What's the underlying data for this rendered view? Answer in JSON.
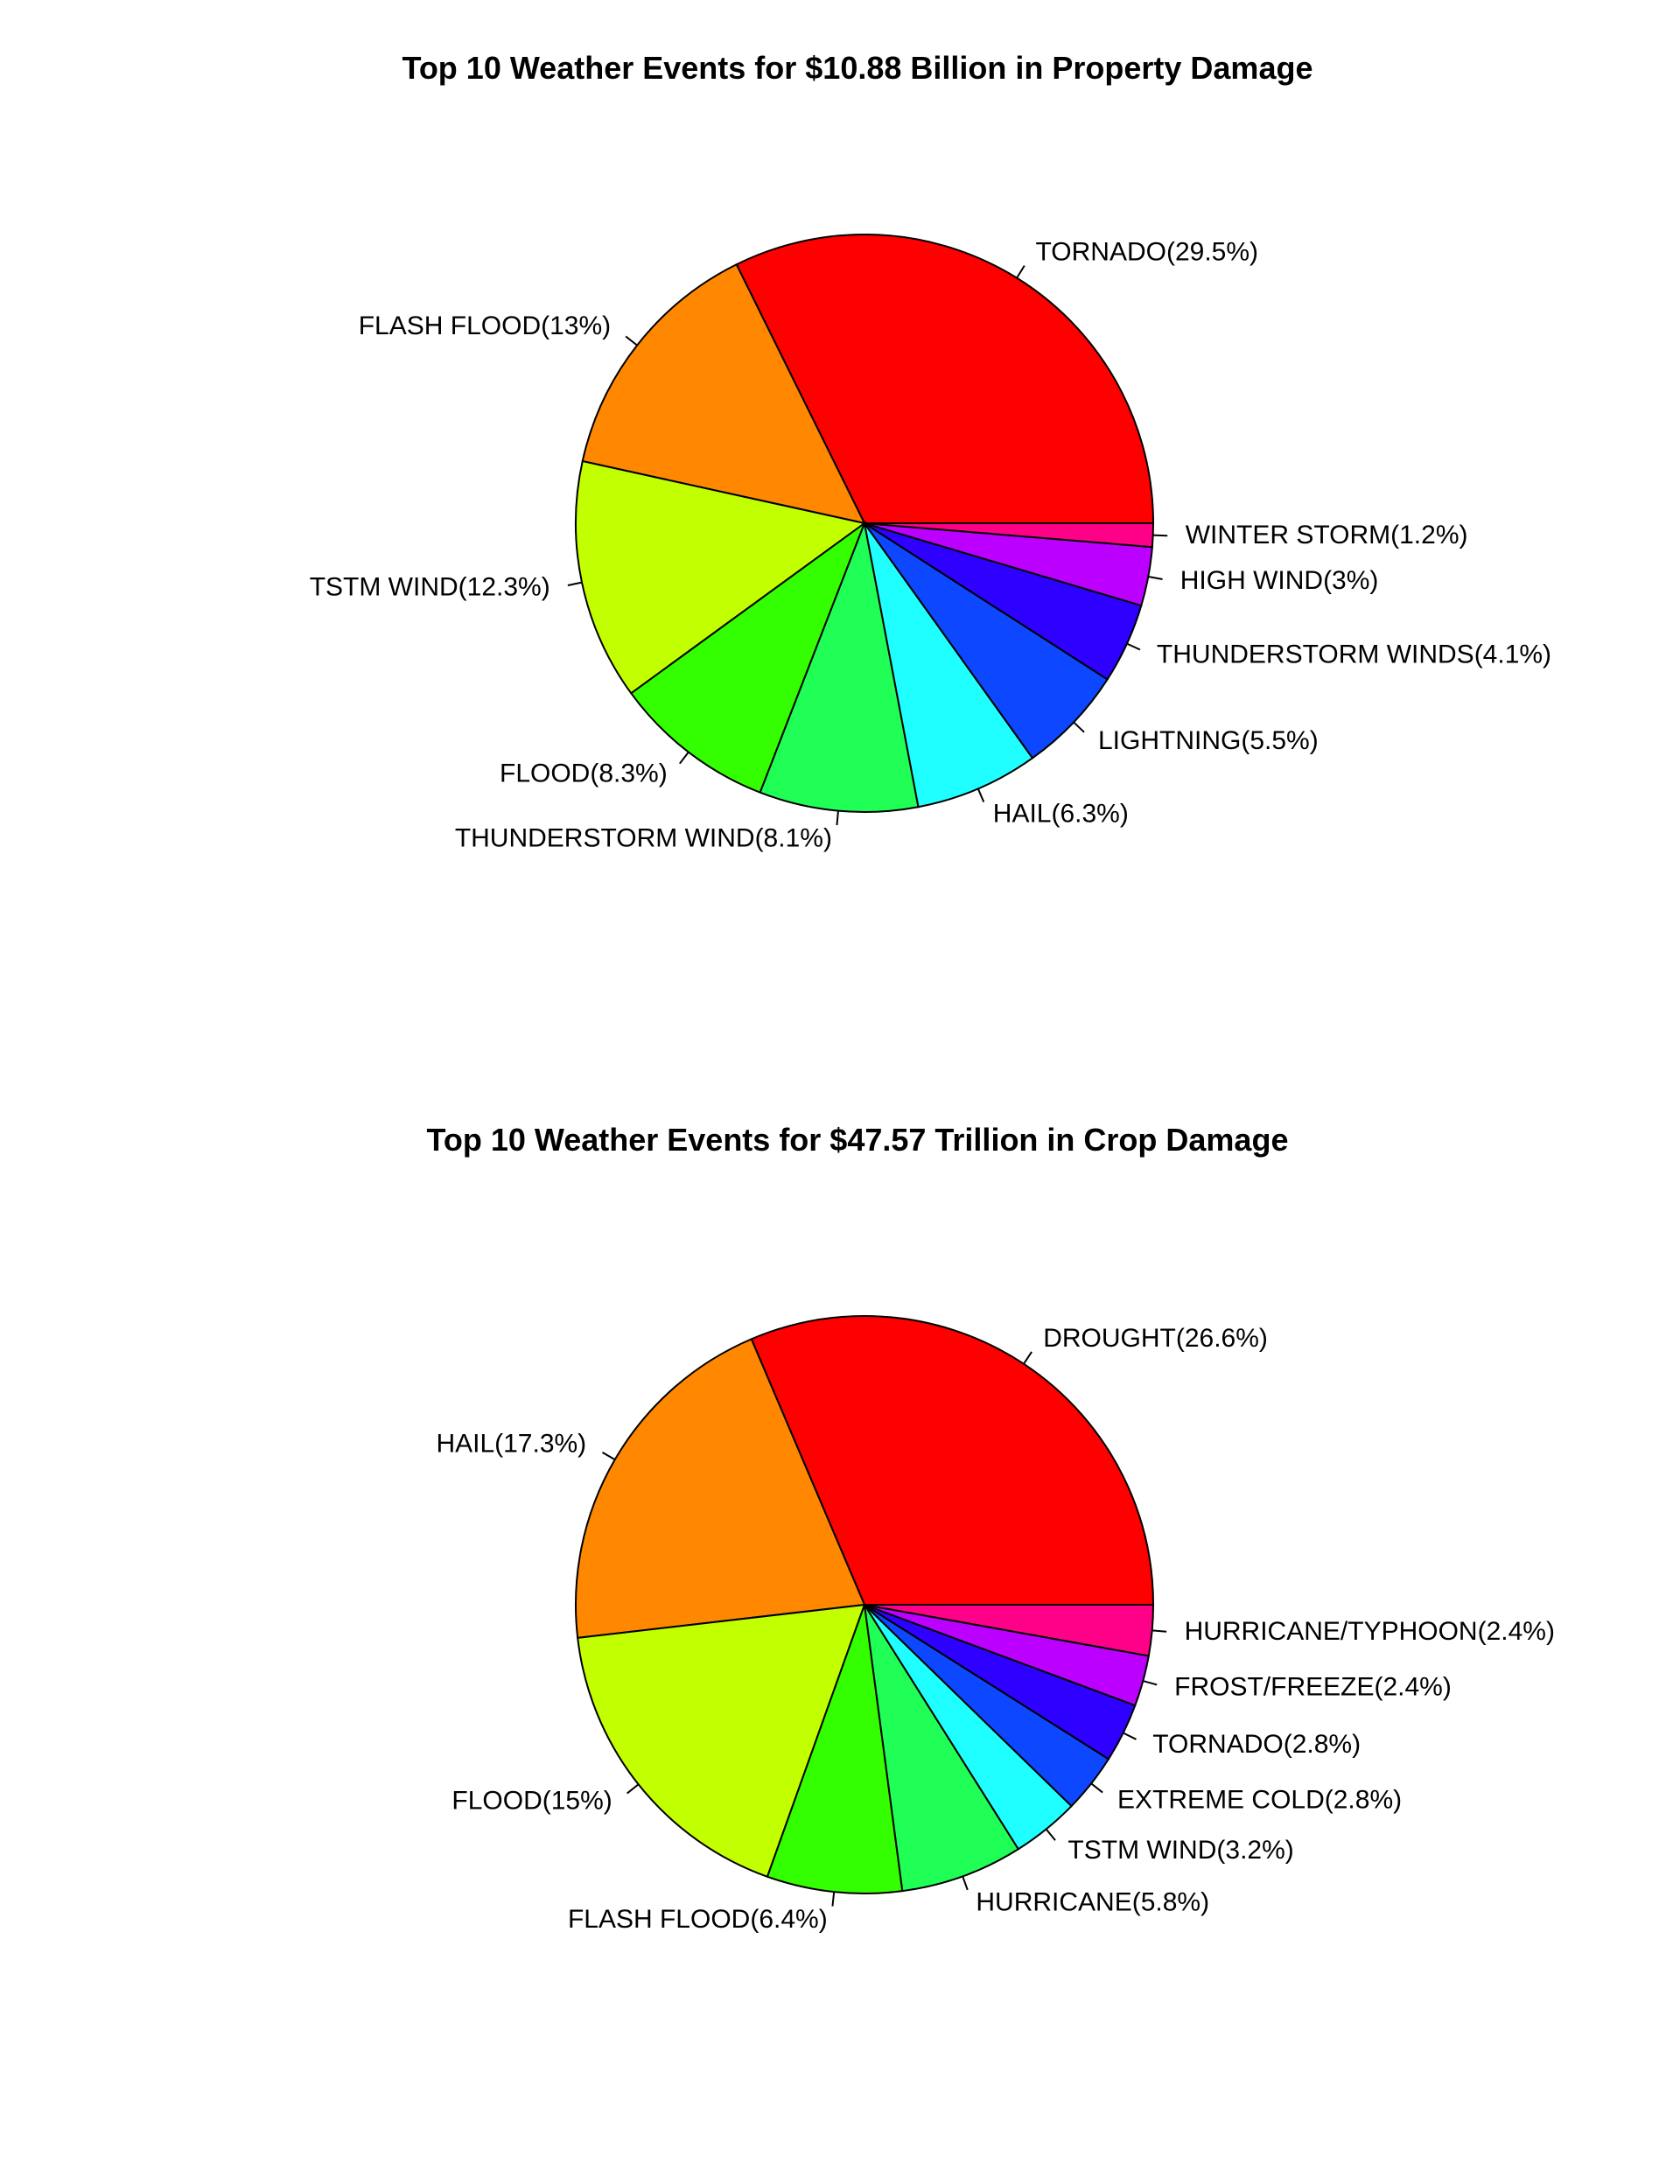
{
  "chart_data": [
    {
      "type": "pie",
      "title": "Top 10 Weather Events for $10.88 Billion in Property Damage",
      "slices": [
        {
          "label": "TORNADO(29.5%)",
          "value": 29.5,
          "color": "#FF0000"
        },
        {
          "label": "FLASH FLOOD(13%)",
          "value": 13.0,
          "color": "#FF8800"
        },
        {
          "label": "TSTM WIND(12.3%)",
          "value": 12.3,
          "color": "#C2FF00"
        },
        {
          "label": "FLOOD(8.3%)",
          "value": 8.3,
          "color": "#33FF00"
        },
        {
          "label": "THUNDERSTORM WIND(8.1%)",
          "value": 8.1,
          "color": "#1FFF55"
        },
        {
          "label": "HAIL(6.3%)",
          "value": 6.3,
          "color": "#1FFFFF"
        },
        {
          "label": "LIGHTNING(5.5%)",
          "value": 5.5,
          "color": "#0D47FF"
        },
        {
          "label": "THUNDERSTORM WINDS(4.1%)",
          "value": 4.1,
          "color": "#2E00FF"
        },
        {
          "label": "HIGH WIND(3%)",
          "value": 3.0,
          "color": "#BB00FF"
        },
        {
          "label": "WINTER STORM(1.2%)",
          "value": 1.2,
          "color": "#FF0088"
        }
      ]
    },
    {
      "type": "pie",
      "title": "Top 10 Weather Events for $47.57 Trillion in Crop Damage",
      "slices": [
        {
          "label": "DROUGHT(26.6%)",
          "value": 26.6,
          "color": "#FF0000"
        },
        {
          "label": "HAIL(17.3%)",
          "value": 17.3,
          "color": "#FF8800"
        },
        {
          "label": "FLOOD(15%)",
          "value": 15.0,
          "color": "#C2FF00"
        },
        {
          "label": "FLASH FLOOD(6.4%)",
          "value": 6.4,
          "color": "#33FF00"
        },
        {
          "label": "HURRICANE(5.8%)",
          "value": 5.8,
          "color": "#1FFF55"
        },
        {
          "label": "TSTM WIND(3.2%)",
          "value": 3.2,
          "color": "#1FFFFF"
        },
        {
          "label": "EXTREME COLD(2.8%)",
          "value": 2.8,
          "color": "#0D47FF"
        },
        {
          "label": "TORNADO(2.8%)",
          "value": 2.8,
          "color": "#2E00FF"
        },
        {
          "label": "FROST/FREEZE(2.4%)",
          "value": 2.4,
          "color": "#BB00FF"
        },
        {
          "label": "HURRICANE/TYPHOON(2.4%)",
          "value": 2.4,
          "color": "#FF0088"
        }
      ]
    }
  ]
}
